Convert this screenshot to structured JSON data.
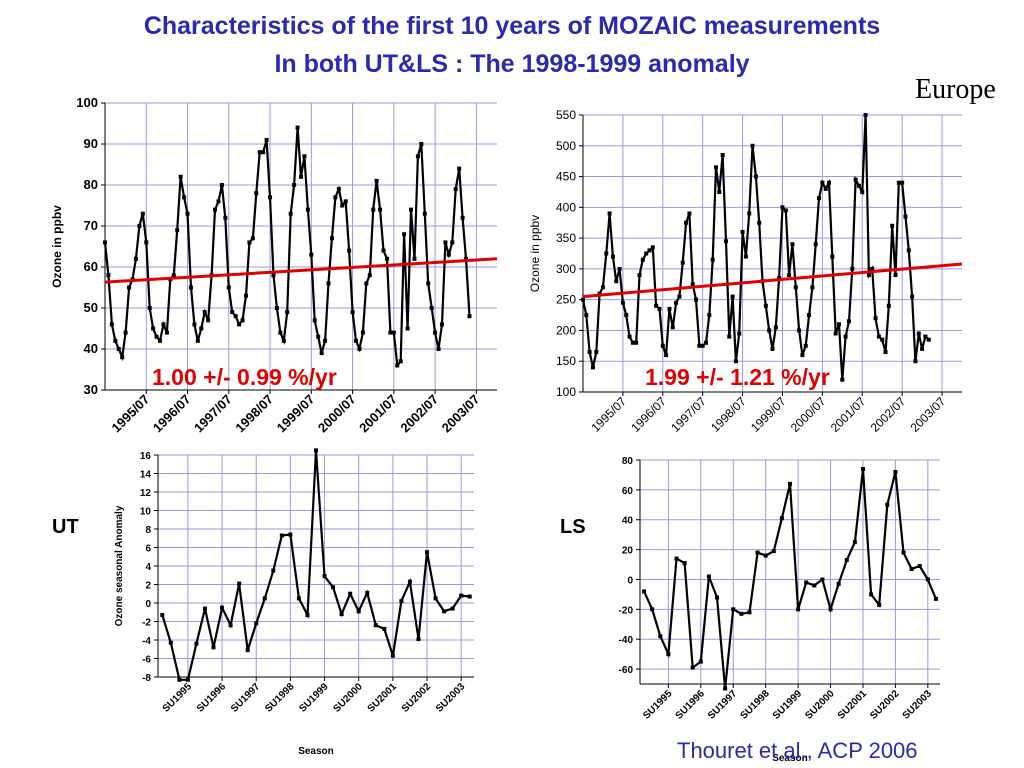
{
  "title_line1": "Characteristics of the first 10 years of MOZAIC measurements",
  "title_line2": "In both UT&LS : The 1998-1999 anomaly",
  "region": "Europe",
  "label_ut": "UT",
  "label_ls": "LS",
  "citation": "Thouret et al., ACP 2006",
  "colors": {
    "title": "#2a2ab0",
    "trend": "#e00000",
    "series": "#000000",
    "grid": "#9999dd"
  },
  "chart_data": [
    {
      "type": "line",
      "ylabel": "Ozone in ppbv",
      "ylim": [
        30,
        100
      ],
      "yticks": [
        30,
        40,
        50,
        60,
        70,
        80,
        90,
        100
      ],
      "x_start": 1994.5,
      "x_step": 0.08333,
      "xlim": [
        1994.5,
        2004.0
      ],
      "xtick_labels": [
        "1995/07",
        "1996/07",
        "1997/07",
        "1998/07",
        "1999/07",
        "2000/07",
        "2001/07",
        "2002/07",
        "2003/07"
      ],
      "xtick_values": [
        1995.5,
        1996.5,
        1997.5,
        1998.5,
        1999.5,
        2000.5,
        2001.5,
        2002.5,
        2003.5
      ],
      "values": [
        66,
        58,
        46,
        42,
        40,
        38,
        44,
        55,
        57,
        62,
        70,
        73,
        66,
        50,
        45,
        43,
        42,
        46,
        44,
        57,
        58,
        69,
        82,
        77,
        73,
        55,
        46,
        42,
        45,
        49,
        47,
        58,
        74,
        76,
        80,
        72,
        55,
        49,
        48,
        46,
        47,
        53,
        66,
        67,
        78,
        88,
        88,
        91,
        77,
        58,
        50,
        44,
        42,
        49,
        73,
        80,
        94,
        82,
        87,
        74,
        63,
        47,
        43,
        39,
        42,
        56,
        67,
        77,
        79,
        75,
        76,
        64,
        49,
        42,
        40,
        44,
        56,
        58,
        74,
        81,
        74,
        64,
        62,
        44,
        44,
        36,
        37,
        68,
        45,
        74,
        62,
        87,
        90,
        73,
        56,
        50,
        44,
        40,
        46,
        66,
        63,
        66,
        79,
        84,
        72,
        62,
        48
      ],
      "trend": {
        "x": [
          1994.5,
          2004.0
        ],
        "y": [
          56.3,
          62.0
        ],
        "label": "1.00 +/- 0.99 %/yr"
      }
    },
    {
      "type": "line",
      "ylabel": "Ozone in ppbv",
      "ylim": [
        100,
        550
      ],
      "yticks": [
        100,
        150,
        200,
        250,
        300,
        350,
        400,
        450,
        500,
        550
      ],
      "x_start": 1994.5,
      "x_step": 0.08333,
      "xlim": [
        1994.5,
        2004.0
      ],
      "xtick_labels": [
        "1995/07",
        "1996/07",
        "1997/07",
        "1998/07",
        "1999/07",
        "2000/07",
        "2001/07",
        "2002/07",
        "2003/07"
      ],
      "xtick_values": [
        1995.5,
        1996.5,
        1997.5,
        1998.5,
        1999.5,
        2000.5,
        2001.5,
        2002.5,
        2003.5
      ],
      "values": [
        250,
        225,
        165,
        140,
        165,
        260,
        270,
        325,
        390,
        320,
        280,
        300,
        245,
        225,
        190,
        180,
        180,
        290,
        315,
        325,
        330,
        335,
        240,
        235,
        175,
        160,
        235,
        205,
        245,
        255,
        310,
        375,
        390,
        275,
        250,
        175,
        175,
        180,
        225,
        315,
        465,
        425,
        485,
        345,
        190,
        255,
        150,
        195,
        360,
        320,
        390,
        500,
        450,
        375,
        280,
        240,
        200,
        170,
        205,
        285,
        400,
        395,
        290,
        340,
        270,
        200,
        160,
        175,
        225,
        270,
        340,
        415,
        440,
        430,
        440,
        320,
        195,
        210,
        120,
        190,
        215,
        300,
        445,
        435,
        425,
        550,
        290,
        300,
        220,
        190,
        185,
        165,
        240,
        370,
        290,
        440,
        440,
        385,
        330,
        255,
        150,
        195,
        170,
        190,
        185
      ],
      "trend": {
        "x": [
          1994.5,
          2004.0
        ],
        "y": [
          255,
          308
        ],
        "label": "1.99 +/- 1.21 %/yr"
      }
    },
    {
      "type": "line",
      "xlabel": "Season",
      "ylabel": "Ozone seasonal Anomaly",
      "ylim": [
        -8,
        16
      ],
      "yticks": [
        -8,
        -6,
        -4,
        -2,
        0,
        2,
        4,
        6,
        8,
        10,
        12,
        14,
        16
      ],
      "xtick_labels": [
        "SU1995",
        "SU1996",
        "SU1997",
        "SU1998",
        "SU1999",
        "SU2000",
        "SU2001",
        "SU2002",
        "SU2003"
      ],
      "xtick_index": [
        3,
        7,
        11,
        15,
        19,
        23,
        27,
        31,
        35
      ],
      "values": [
        -1.3,
        -4.3,
        -8.3,
        -8.3,
        -4.4,
        -0.6,
        -4.8,
        -0.5,
        -2.4,
        2.1,
        -5.1,
        -2.2,
        0.5,
        3.5,
        7.3,
        7.4,
        0.5,
        -1.3,
        16.5,
        2.9,
        1.7,
        -1.2,
        1.0,
        -0.9,
        1.1,
        -2.4,
        -2.8,
        -5.7,
        0.2,
        2.3,
        -3.9,
        5.5,
        0.5,
        -0.9,
        -0.6,
        0.8,
        0.7
      ]
    },
    {
      "type": "line",
      "xlabel": "Season",
      "ylim": [
        -70,
        80
      ],
      "yticks": [
        -60,
        -40,
        -20,
        0,
        20,
        40,
        60,
        80
      ],
      "xtick_labels": [
        "SU1995",
        "SU1996",
        "SU1997",
        "SU1998",
        "SU1999",
        "SU2000",
        "SU2001",
        "SU2002",
        "SU2003"
      ],
      "xtick_index": [
        3,
        7,
        11,
        15,
        19,
        23,
        27,
        31,
        35
      ],
      "values": [
        -8,
        -20,
        -38,
        -50,
        14,
        11,
        -59,
        -55,
        2,
        -12,
        -73,
        -20,
        -23,
        -22,
        18,
        16,
        19,
        41,
        64,
        -20,
        -2,
        -4,
        0,
        -20,
        -3,
        13,
        25,
        74,
        -10,
        -17,
        50,
        72,
        18,
        7,
        9,
        0,
        -13
      ]
    }
  ]
}
